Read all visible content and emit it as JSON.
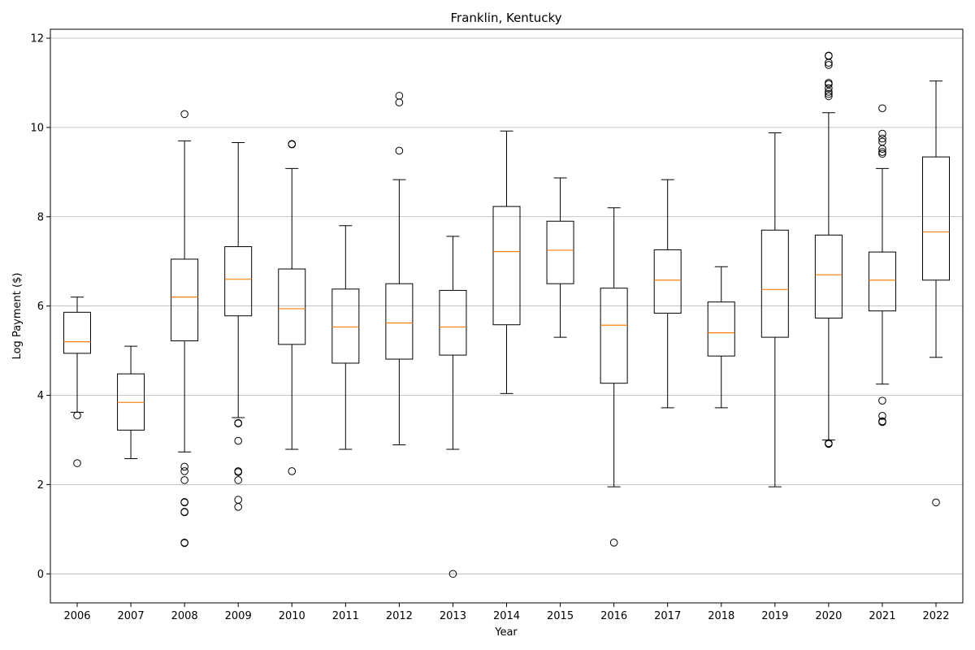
{
  "chart_data": {
    "type": "box",
    "title": "Franklin, Kentucky",
    "xlabel": "Year",
    "ylabel": "Log Payment ($)",
    "ylim": [
      -0.65,
      12.2
    ],
    "yticks": [
      0,
      2,
      4,
      6,
      8,
      10,
      12
    ],
    "grid": "horizontal",
    "colors": {
      "box": "#000000",
      "median": "#ff7f0e",
      "grid": "#b0b0b0",
      "background": "#ffffff"
    },
    "categories": [
      "2006",
      "2007",
      "2008",
      "2009",
      "2010",
      "2011",
      "2012",
      "2013",
      "2014",
      "2015",
      "2016",
      "2017",
      "2018",
      "2019",
      "2020",
      "2021",
      "2022"
    ],
    "boxes": [
      {
        "year": "2006",
        "whisker_low": 3.62,
        "q1": 4.94,
        "median": 5.2,
        "q3": 5.86,
        "whisker_high": 6.2,
        "outliers": [
          3.55,
          2.48
        ]
      },
      {
        "year": "2007",
        "whisker_low": 2.58,
        "q1": 3.22,
        "median": 3.84,
        "q3": 4.48,
        "whisker_high": 5.1,
        "outliers": []
      },
      {
        "year": "2008",
        "whisker_low": 2.73,
        "q1": 5.22,
        "median": 6.2,
        "q3": 7.05,
        "whisker_high": 9.7,
        "outliers": [
          10.3,
          2.4,
          2.3,
          2.1,
          1.61,
          1.6,
          1.39,
          1.38,
          0.7,
          0.69
        ]
      },
      {
        "year": "2009",
        "whisker_low": 3.5,
        "q1": 5.78,
        "median": 6.6,
        "q3": 7.33,
        "whisker_high": 9.66,
        "outliers": [
          3.38,
          3.37,
          2.98,
          2.3,
          2.28,
          2.1,
          1.66,
          1.5
        ]
      },
      {
        "year": "2010",
        "whisker_low": 2.79,
        "q1": 5.14,
        "median": 5.94,
        "q3": 6.83,
        "whisker_high": 9.08,
        "outliers": [
          9.63,
          9.62,
          2.3
        ]
      },
      {
        "year": "2011",
        "whisker_low": 2.79,
        "q1": 4.72,
        "median": 5.53,
        "q3": 6.38,
        "whisker_high": 7.8,
        "outliers": []
      },
      {
        "year": "2012",
        "whisker_low": 2.89,
        "q1": 4.81,
        "median": 5.62,
        "q3": 6.5,
        "whisker_high": 8.83,
        "outliers": [
          10.71,
          10.56,
          9.48
        ]
      },
      {
        "year": "2013",
        "whisker_low": 2.79,
        "q1": 4.9,
        "median": 5.53,
        "q3": 6.35,
        "whisker_high": 7.56,
        "outliers": [
          0.0
        ]
      },
      {
        "year": "2014",
        "whisker_low": 4.04,
        "q1": 5.58,
        "median": 7.22,
        "q3": 8.23,
        "whisker_high": 9.92,
        "outliers": []
      },
      {
        "year": "2015",
        "whisker_low": 5.3,
        "q1": 6.5,
        "median": 7.25,
        "q3": 7.9,
        "whisker_high": 8.87,
        "outliers": []
      },
      {
        "year": "2016",
        "whisker_low": 1.95,
        "q1": 4.27,
        "median": 5.57,
        "q3": 6.4,
        "whisker_high": 8.2,
        "outliers": [
          0.7
        ]
      },
      {
        "year": "2017",
        "whisker_low": 3.72,
        "q1": 5.84,
        "median": 6.58,
        "q3": 7.26,
        "whisker_high": 8.83,
        "outliers": []
      },
      {
        "year": "2018",
        "whisker_low": 3.72,
        "q1": 4.88,
        "median": 5.4,
        "q3": 6.09,
        "whisker_high": 6.88,
        "outliers": []
      },
      {
        "year": "2019",
        "whisker_low": 1.95,
        "q1": 5.3,
        "median": 6.37,
        "q3": 7.7,
        "whisker_high": 9.88,
        "outliers": []
      },
      {
        "year": "2020",
        "whisker_low": 3.0,
        "q1": 5.73,
        "median": 6.7,
        "q3": 7.59,
        "whisker_high": 10.33,
        "outliers": [
          11.61,
          11.6,
          11.45,
          11.4,
          11.0,
          10.97,
          10.88,
          10.8,
          10.75,
          10.7,
          2.93,
          2.91
        ]
      },
      {
        "year": "2021",
        "whisker_low": 4.25,
        "q1": 5.89,
        "median": 6.58,
        "q3": 7.21,
        "whisker_high": 9.08,
        "outliers": [
          10.43,
          9.86,
          9.75,
          9.68,
          9.52,
          9.45,
          9.41,
          3.88,
          3.54,
          3.42,
          3.4
        ]
      },
      {
        "year": "2022",
        "whisker_low": 4.85,
        "q1": 6.58,
        "median": 7.66,
        "q3": 9.34,
        "whisker_high": 11.04,
        "outliers": [
          1.6
        ]
      }
    ]
  }
}
